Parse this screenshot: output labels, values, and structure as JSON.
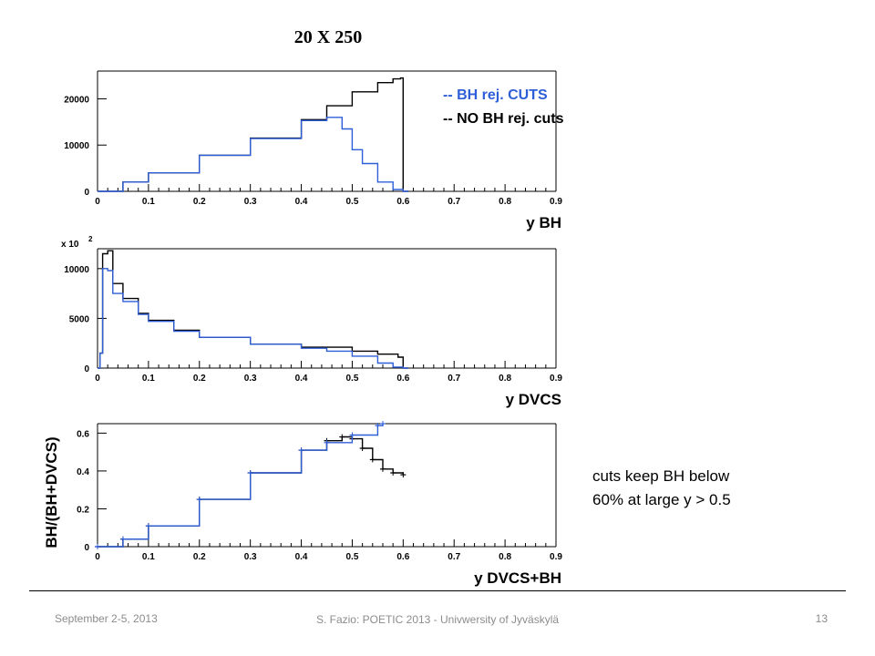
{
  "slide": {
    "title": "20 X 250",
    "legend": {
      "cuts_label": "-- BH rej. CUTS",
      "cuts_color": "#2f5fd8",
      "nocuts_label": "-- NO BH rej. cuts",
      "nocuts_color": "#000000"
    },
    "note_line1": "cuts keep BH below",
    "note_line2": "60% at large y > 0.5",
    "footer": {
      "date": "September 2-5, 2013",
      "center": "S. Fazio: POETIC 2013 - Univwersity of Jyväskylä",
      "page": "13"
    }
  },
  "chart_data": [
    {
      "type": "line",
      "xlabel": "y BH",
      "ylabel": "",
      "xlim": [
        0,
        0.9
      ],
      "ylim": [
        0,
        26000
      ],
      "x_ticks": [
        "0",
        "0.1",
        "0.2",
        "0.3",
        "0.4",
        "0.5",
        "0.6",
        "0.7",
        "0.8",
        "0.9"
      ],
      "y_ticks": [
        {
          "value": 0,
          "label": "0"
        },
        {
          "value": 10000,
          "label": "10000"
        },
        {
          "value": 20000,
          "label": "20000"
        }
      ],
      "grid": false,
      "series": [
        {
          "key": "no-cuts",
          "color": "#000000",
          "x": [
            0,
            0.05,
            0.1,
            0.2,
            0.3,
            0.4,
            0.45,
            0.5,
            0.55,
            0.58,
            0.595,
            0.6,
            0.61
          ],
          "y": [
            0,
            2000,
            4000,
            7800,
            11500,
            15500,
            18500,
            21500,
            23500,
            24300,
            24500,
            0,
            0
          ]
        },
        {
          "key": "cuts",
          "color": "#2f5fd8",
          "x": [
            0,
            0.05,
            0.1,
            0.2,
            0.3,
            0.4,
            0.45,
            0.48,
            0.5,
            0.52,
            0.55,
            0.58,
            0.6,
            0.61
          ],
          "y": [
            0,
            2000,
            4000,
            7800,
            11400,
            15300,
            16000,
            13500,
            9000,
            6000,
            2000,
            400,
            0,
            0
          ]
        }
      ]
    },
    {
      "type": "line",
      "xlabel": "y DVCS",
      "ylabel": "",
      "axis_multiplier": "x 10",
      "axis_multiplier_exp": "2",
      "xlim": [
        0,
        0.9
      ],
      "ylim": [
        0,
        12000
      ],
      "x_ticks": [
        "0",
        "0.1",
        "0.2",
        "0.3",
        "0.4",
        "0.5",
        "0.6",
        "0.7",
        "0.8",
        "0.9"
      ],
      "y_ticks": [
        {
          "value": 0,
          "label": "0"
        },
        {
          "value": 5000,
          "label": "5000"
        },
        {
          "value": 10000,
          "label": "10000"
        }
      ],
      "grid": false,
      "series": [
        {
          "key": "no-cuts",
          "color": "#000000",
          "x": [
            0,
            0.005,
            0.01,
            0.02,
            0.03,
            0.05,
            0.08,
            0.1,
            0.15,
            0.2,
            0.3,
            0.4,
            0.5,
            0.55,
            0.59,
            0.6,
            0.61
          ],
          "y": [
            0,
            1500,
            11500,
            11800,
            8500,
            7000,
            5500,
            4800,
            3800,
            3100,
            2400,
            2100,
            1700,
            1400,
            1100,
            0,
            0
          ]
        },
        {
          "key": "cuts",
          "color": "#2f5fd8",
          "x": [
            0,
            0.005,
            0.01,
            0.02,
            0.03,
            0.05,
            0.08,
            0.1,
            0.15,
            0.2,
            0.3,
            0.4,
            0.45,
            0.5,
            0.55,
            0.58,
            0.6,
            0.61
          ],
          "y": [
            0,
            1500,
            10000,
            9800,
            7500,
            6700,
            5400,
            4700,
            3700,
            3100,
            2400,
            2000,
            1700,
            1200,
            500,
            100,
            0,
            0
          ]
        }
      ]
    },
    {
      "type": "line",
      "xlabel": "y DVCS+BH",
      "ylabel": "BH/(BH+DVCS)",
      "xlim": [
        0,
        0.9
      ],
      "ylim": [
        0,
        0.65
      ],
      "x_ticks": [
        "0",
        "0.1",
        "0.2",
        "0.3",
        "0.4",
        "0.5",
        "0.6",
        "0.7",
        "0.8",
        "0.9"
      ],
      "y_ticks": [
        {
          "value": 0,
          "label": "0"
        },
        {
          "value": 0.2,
          "label": "0.2"
        },
        {
          "value": 0.4,
          "label": "0.4"
        },
        {
          "value": 0.6,
          "label": "0.6"
        }
      ],
      "grid": false,
      "series": [
        {
          "key": "no-cuts",
          "color": "#000000",
          "x": [
            0,
            0.05,
            0.1,
            0.2,
            0.3,
            0.4,
            0.45,
            0.48,
            0.5,
            0.52,
            0.54,
            0.56,
            0.58,
            0.6
          ],
          "y": [
            0,
            0.04,
            0.11,
            0.25,
            0.39,
            0.51,
            0.56,
            0.58,
            0.57,
            0.52,
            0.46,
            0.41,
            0.39,
            0.38
          ]
        },
        {
          "key": "cuts",
          "color": "#2f5fd8",
          "x": [
            0,
            0.05,
            0.1,
            0.2,
            0.3,
            0.4,
            0.45,
            0.5,
            0.55,
            0.56
          ],
          "y": [
            0,
            0.04,
            0.11,
            0.25,
            0.39,
            0.51,
            0.55,
            0.59,
            0.64,
            0.65
          ]
        }
      ]
    }
  ]
}
